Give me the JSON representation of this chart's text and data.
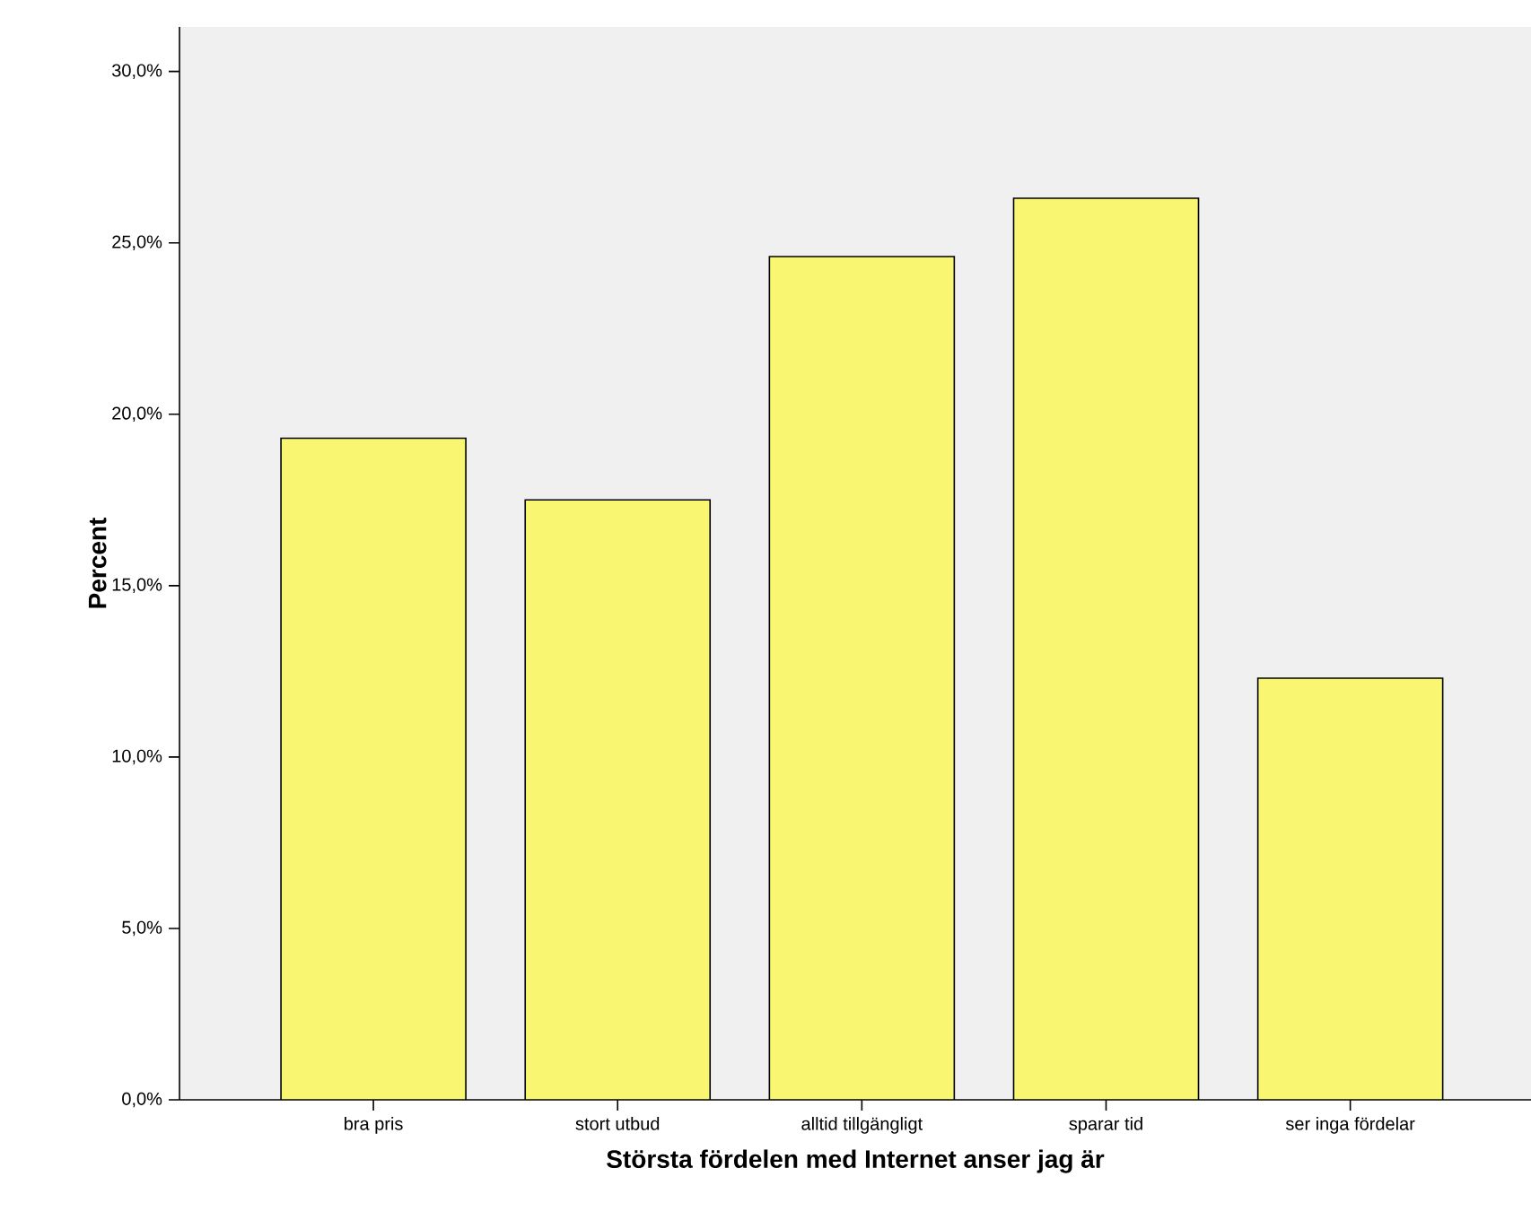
{
  "chart_data": {
    "type": "bar",
    "xlabel": "Största fördelen med Internet anser jag är",
    "ylabel": "Percent",
    "categories": [
      "bra pris",
      "stort utbud",
      "alltid tillgängligt",
      "sparar tid",
      "ser inga fördelar"
    ],
    "values": [
      19.3,
      17.5,
      24.6,
      26.3,
      12.3
    ],
    "color": "#f9f672",
    "ylim": [
      0,
      31.3
    ],
    "yticks": [
      {
        "value": 0,
        "label": "0,0%"
      },
      {
        "value": 5,
        "label": "5,0%"
      },
      {
        "value": 10,
        "label": "10,0%"
      },
      {
        "value": 15,
        "label": "15,0%"
      },
      {
        "value": 20,
        "label": "20,0%"
      },
      {
        "value": 25,
        "label": "25,0%"
      },
      {
        "value": 30,
        "label": "30,0%"
      }
    ],
    "grid": false
  }
}
